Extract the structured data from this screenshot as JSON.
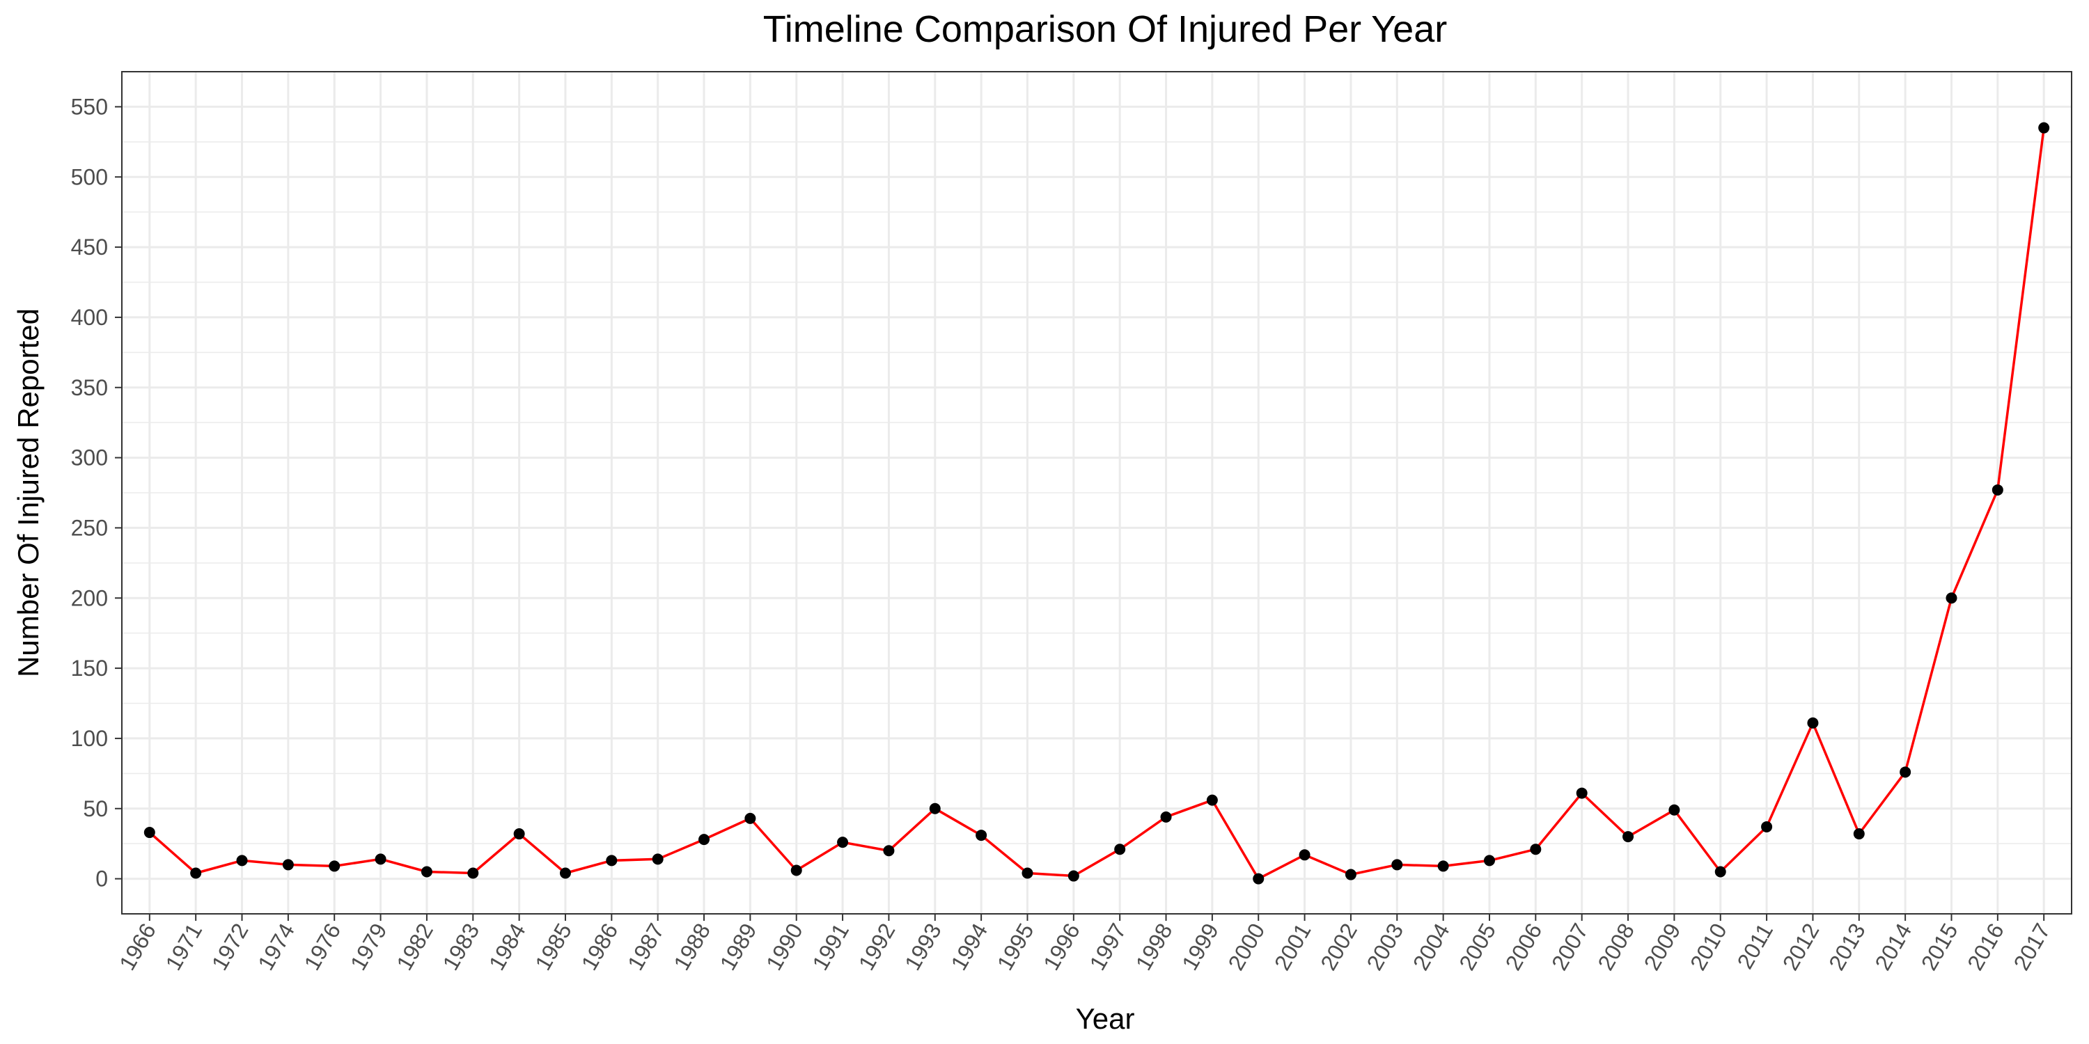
{
  "chart_data": {
    "type": "line",
    "title": "Timeline Comparison Of Injured Per Year",
    "xlabel": "Year",
    "ylabel": "Number Of Injured Reported",
    "x": [
      "1966",
      "1971",
      "1972",
      "1974",
      "1976",
      "1979",
      "1982",
      "1983",
      "1984",
      "1985",
      "1986",
      "1987",
      "1988",
      "1989",
      "1990",
      "1991",
      "1992",
      "1993",
      "1994",
      "1995",
      "1996",
      "1997",
      "1998",
      "1999",
      "2000",
      "2001",
      "2002",
      "2003",
      "2004",
      "2005",
      "2006",
      "2007",
      "2008",
      "2009",
      "2010",
      "2011",
      "2012",
      "2013",
      "2014",
      "2015",
      "2016",
      "2017"
    ],
    "values": [
      33,
      4,
      13,
      10,
      9,
      14,
      5,
      4,
      32,
      4,
      13,
      14,
      28,
      43,
      6,
      26,
      20,
      50,
      31,
      4,
      2,
      21,
      44,
      56,
      0,
      17,
      3,
      10,
      9,
      13,
      21,
      61,
      30,
      49,
      5,
      37,
      111,
      32,
      76,
      200,
      277,
      535
    ],
    "ylim": [
      -25,
      575
    ],
    "yticks": [
      0,
      50,
      100,
      150,
      200,
      250,
      300,
      350,
      400,
      450,
      500,
      550
    ],
    "grid": true,
    "legend": "none",
    "colors": {
      "line": "#ff0000",
      "point": "#000000",
      "grid": "#ebebeb",
      "panel_border": "#333333"
    }
  }
}
